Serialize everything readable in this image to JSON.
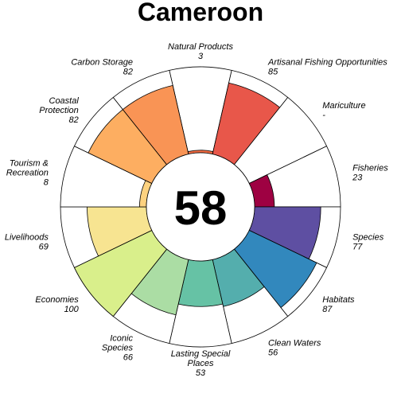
{
  "chart_data": {
    "type": "flower",
    "title": "Cameroon",
    "score": "58",
    "max_value": 100,
    "petals": [
      {
        "name": "Natural Products",
        "name_lines": [
          "Natural Products"
        ],
        "value_label": "3",
        "value": 3,
        "color": "#F46D43"
      },
      {
        "name": "Artisanal Fishing Opportunities",
        "name_lines": [
          "Artisanal Fishing Opportunities"
        ],
        "value_label": "85",
        "value": 85,
        "color": "#E8574A"
      },
      {
        "name": "Mariculture",
        "name_lines": [
          "Mariculture"
        ],
        "value_label": "-",
        "value": null,
        "color": "#D53E4F"
      },
      {
        "name": "Fisheries",
        "name_lines": [
          "Fisheries"
        ],
        "value_label": "23",
        "value": 23,
        "color": "#9E0142"
      },
      {
        "name": "Species",
        "name_lines": [
          "Species"
        ],
        "value_label": "77",
        "value": 77,
        "color": "#5E4FA2"
      },
      {
        "name": "Habitats",
        "name_lines": [
          "Habitats"
        ],
        "value_label": "87",
        "value": 87,
        "color": "#3288BD"
      },
      {
        "name": "Clean Waters",
        "name_lines": [
          "Clean Waters"
        ],
        "value_label": "56",
        "value": 56,
        "color": "#54AEAD"
      },
      {
        "name": "Lasting Special Places",
        "name_lines": [
          "Lasting Special",
          "Places"
        ],
        "value_label": "53",
        "value": 53,
        "color": "#66C2A5"
      },
      {
        "name": "Iconic Species",
        "name_lines": [
          "Iconic",
          "Species"
        ],
        "value_label": "66",
        "value": 66,
        "color": "#ABDDA4"
      },
      {
        "name": "Economies",
        "name_lines": [
          "Economies"
        ],
        "value_label": "100",
        "value": 100,
        "color": "#D9EF8B"
      },
      {
        "name": "Livelihoods",
        "name_lines": [
          "Livelihoods"
        ],
        "value_label": "69",
        "value": 69,
        "color": "#F7E491"
      },
      {
        "name": "Tourism & Recreation",
        "name_lines": [
          "Tourism &",
          "Recreation"
        ],
        "value_label": "8",
        "value": 8,
        "color": "#FDD280"
      },
      {
        "name": "Coastal Protection",
        "name_lines": [
          "Coastal",
          "Protection"
        ],
        "value_label": "82",
        "value": 82,
        "color": "#FDAE61"
      },
      {
        "name": "Carbon Storage",
        "name_lines": [
          "Carbon Storage"
        ],
        "value_label": "82",
        "value": 82,
        "color": "#F99455"
      }
    ]
  }
}
